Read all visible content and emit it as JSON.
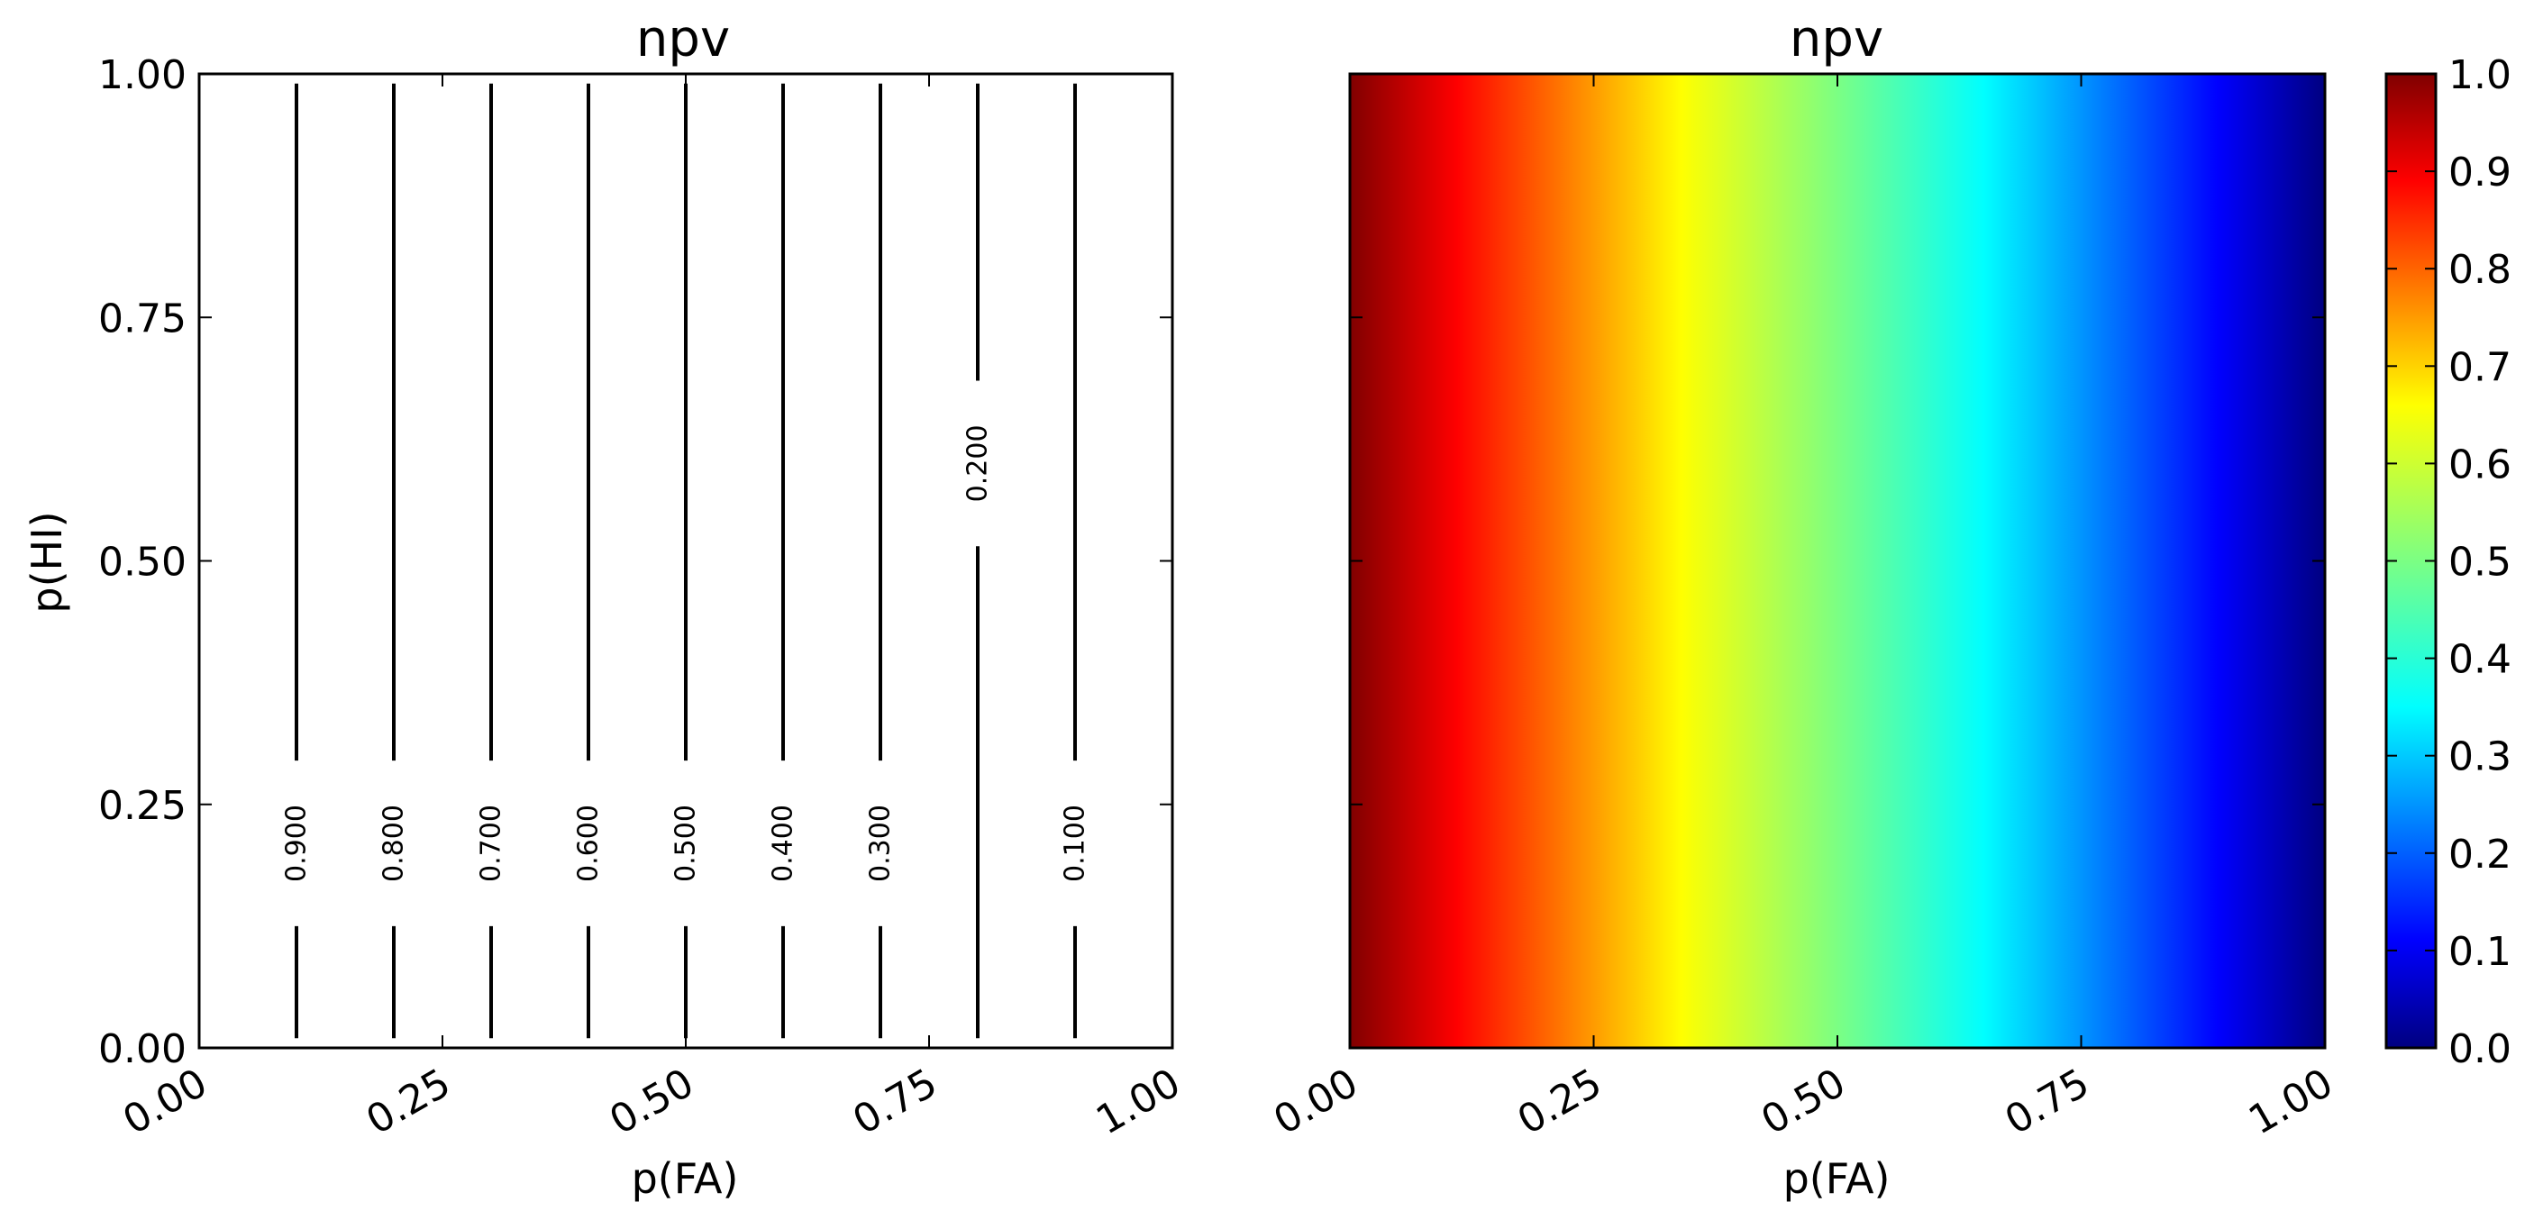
{
  "chart_data": [
    {
      "type": "contour",
      "title": "npv",
      "xlabel": "p(FA)",
      "ylabel": "p(HI)",
      "xlim": [
        0,
        1
      ],
      "ylim": [
        0,
        1
      ],
      "xticks": [
        "0.00",
        "0.25",
        "0.50",
        "0.75",
        "1.00"
      ],
      "yticks": [
        "0.00",
        "0.25",
        "0.50",
        "0.75",
        "1.00"
      ],
      "levels": [
        {
          "value": 0.9,
          "label": "0.900",
          "x": 0.1
        },
        {
          "value": 0.8,
          "label": "0.800",
          "x": 0.2
        },
        {
          "value": 0.7,
          "label": "0.700",
          "x": 0.3
        },
        {
          "value": 0.6,
          "label": "0.600",
          "x": 0.4
        },
        {
          "value": 0.5,
          "label": "0.500",
          "x": 0.5
        },
        {
          "value": 0.4,
          "label": "0.400",
          "x": 0.6
        },
        {
          "value": 0.3,
          "label": "0.300",
          "x": 0.7
        },
        {
          "value": 0.2,
          "label": "0.200",
          "x": 0.8,
          "label_y": 0.6
        },
        {
          "value": 0.1,
          "label": "0.100",
          "x": 0.9
        }
      ],
      "grid": false
    },
    {
      "type": "heatmap",
      "title": "npv",
      "xlabel": "p(FA)",
      "ylabel": "",
      "xlim": [
        0,
        1
      ],
      "ylim": [
        0,
        1
      ],
      "xticks": [
        "0.00",
        "0.25",
        "0.50",
        "0.75",
        "1.00"
      ],
      "colormap": "jet",
      "function": "npv = 1 - p(FA), constant along p(HI)",
      "colorbar": {
        "range": [
          0,
          1
        ],
        "ticks": [
          "0.0",
          "0.1",
          "0.2",
          "0.3",
          "0.4",
          "0.5",
          "0.6",
          "0.7",
          "0.8",
          "0.9",
          "1.0"
        ]
      },
      "grid": false
    }
  ]
}
